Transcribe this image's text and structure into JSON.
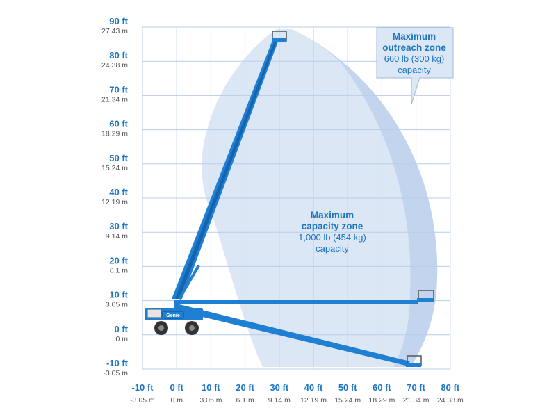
{
  "axes": {
    "y_ticks": [
      {
        "ft": "90 ft",
        "m": "27.43 m",
        "value": 90
      },
      {
        "ft": "80 ft",
        "m": "24.38 m",
        "value": 80
      },
      {
        "ft": "70 ft",
        "m": "21.34 m",
        "value": 70
      },
      {
        "ft": "60 ft",
        "m": "18.29 m",
        "value": 60
      },
      {
        "ft": "50 ft",
        "m": "15.24 m",
        "value": 50
      },
      {
        "ft": "40 ft",
        "m": "12.19 m",
        "value": 40
      },
      {
        "ft": "30 ft",
        "m": "9.14 m",
        "value": 30
      },
      {
        "ft": "20 ft",
        "m": "6.1 m",
        "value": 20
      },
      {
        "ft": "10 ft",
        "m": "3.05 m",
        "value": 10
      },
      {
        "ft": "0 ft",
        "m": "0 m",
        "value": 0
      },
      {
        "ft": "-10 ft",
        "m": "-3.05 m",
        "value": -10
      }
    ],
    "x_ticks": [
      {
        "ft": "-10 ft",
        "m": "-3.05 m",
        "value": -10
      },
      {
        "ft": "0 ft",
        "m": "0 m",
        "value": 0
      },
      {
        "ft": "10 ft",
        "m": "3.05 m",
        "value": 10
      },
      {
        "ft": "20 ft",
        "m": "6.1 m",
        "value": 20
      },
      {
        "ft": "30 ft",
        "m": "9.14 m",
        "value": 30
      },
      {
        "ft": "40 ft",
        "m": "12.19 m",
        "value": 40
      },
      {
        "ft": "50 ft",
        "m": "15.24 m",
        "value": 50
      },
      {
        "ft": "60 ft",
        "m": "18.29 m",
        "value": 60
      },
      {
        "ft": "70 ft",
        "m": "21.34 m",
        "value": 70
      },
      {
        "ft": "80 ft",
        "m": "24.38 m",
        "value": 80
      }
    ]
  },
  "zones": {
    "capacity": {
      "title_line1": "Maximum",
      "title_line2": "capacity zone",
      "load": "1,000 lb (454 kg)",
      "suffix": "capacity"
    },
    "outreach": {
      "title_line1": "Maximum",
      "title_line2": "outreach zone",
      "load": "660 lb (300 kg)",
      "suffix": "capacity"
    }
  },
  "machine": {
    "brand_text": "Genie"
  },
  "colors": {
    "grid": "#b9cde8",
    "label": "#1b75c4",
    "sublabel": "#555555",
    "boom": "#1f7fd3",
    "zone_light": "#dce7f5",
    "zone_dark": "#c3d5ee"
  }
}
